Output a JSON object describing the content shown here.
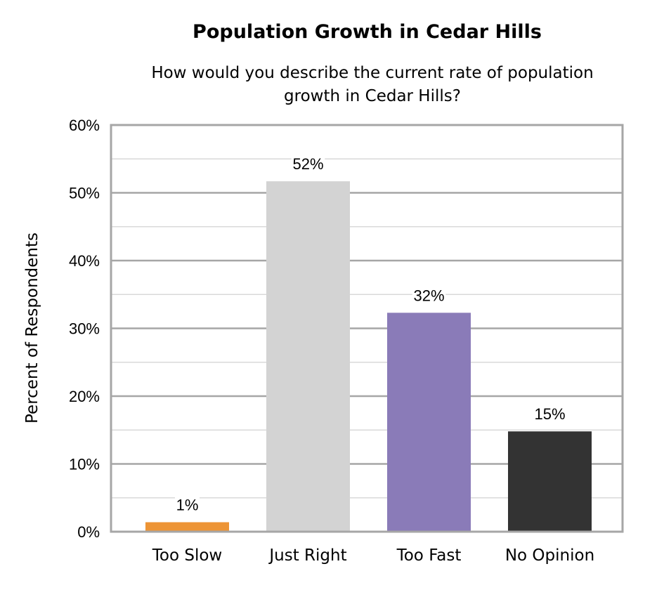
{
  "chart_data": {
    "type": "bar",
    "title": "Population Growth in Cedar Hills",
    "subtitle": "How would you describe the current rate of population growth in Cedar Hills?",
    "xlabel": "",
    "ylabel": "Percent of Respondents",
    "categories": [
      "Too Slow",
      "Just Right",
      "Too Fast",
      "No Opinion"
    ],
    "values": [
      1.4,
      51.7,
      32.3,
      14.8
    ],
    "data_labels": [
      "1%",
      "52%",
      "32%",
      "15%"
    ],
    "colors": [
      "#ED9435",
      "#D3D3D3",
      "#8A7BB8",
      "#333333"
    ],
    "ylim": [
      0,
      60
    ],
    "yticks": [
      0,
      10,
      20,
      30,
      40,
      50,
      60
    ],
    "ytick_labels": [
      "0%",
      "10%",
      "20%",
      "30%",
      "40%",
      "50%",
      "60%"
    ],
    "grid": true,
    "minor_grid": true
  }
}
